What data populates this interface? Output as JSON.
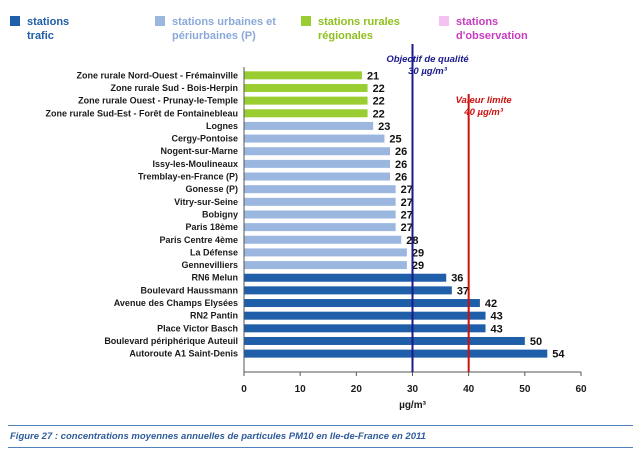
{
  "legend": [
    {
      "key": "trafic",
      "lines": [
        "stations",
        "trafic"
      ],
      "color": "#1f5ea8",
      "text_color": "#1f5ea8"
    },
    {
      "key": "urbaines",
      "lines": [
        "stations urbaines et",
        "périurbaines (P)"
      ],
      "color": "#9bb7e0",
      "text_color": "#8aa9d8"
    },
    {
      "key": "rurales",
      "lines": [
        "stations rurales",
        "régionales"
      ],
      "color": "#9acd32",
      "text_color": "#8fbf1f"
    },
    {
      "key": "observation",
      "lines": [
        "stations",
        "d'observation"
      ],
      "color": "#f4c2f0",
      "text_color": "#c83cc0"
    }
  ],
  "chart_data": {
    "type": "bar",
    "orientation": "horizontal",
    "categories": [
      "Zone rurale Nord-Ouest - Frémainville",
      "Zone rurale Sud - Bois-Herpin",
      "Zone rurale Ouest - Prunay-le-Temple",
      "Zone rurale Sud-Est - Forêt de Fontainebleau",
      "Lognes",
      "Cergy-Pontoise",
      "Nogent-sur-Marne",
      "Issy-les-Moulineaux",
      "Tremblay-en-France (P)",
      "Gonesse (P)",
      "Vitry-sur-Seine",
      "Bobigny",
      "Paris 18ème",
      "Paris Centre 4ème",
      "La Défense",
      "Gennevilliers",
      "RN6 Melun",
      "Boulevard Haussmann",
      "Avenue des Champs Elysées",
      "RN2 Pantin",
      "Place Victor Basch",
      "Boulevard périphérique Auteuil",
      "Autoroute A1 Saint-Denis"
    ],
    "values": [
      21,
      22,
      22,
      22,
      23,
      25,
      26,
      26,
      26,
      27,
      27,
      27,
      27,
      28,
      29,
      29,
      36,
      37,
      42,
      43,
      43,
      50,
      54
    ],
    "groups": [
      "rurales",
      "rurales",
      "rurales",
      "rurales",
      "urbaines",
      "urbaines",
      "urbaines",
      "urbaines",
      "urbaines",
      "urbaines",
      "urbaines",
      "urbaines",
      "urbaines",
      "urbaines",
      "urbaines",
      "urbaines",
      "trafic",
      "trafic",
      "trafic",
      "trafic",
      "trafic",
      "trafic",
      "trafic"
    ],
    "xlabel": "µg/m³",
    "xlim": [
      0,
      60
    ],
    "xticks": [
      "0",
      "10",
      "20",
      "30",
      "40",
      "50",
      "60"
    ],
    "grid": false,
    "reference_lines": [
      {
        "value": 30,
        "color": "#1a1a8c",
        "lines": [
          "Objectif de qualité",
          "30 µg/m³"
        ],
        "text_color": "#1a1a8c"
      },
      {
        "value": 40,
        "color": "#cc1111",
        "lines": [
          "Valeur limite",
          "40 µg/m³"
        ],
        "text_color": "#cc1111"
      }
    ]
  },
  "caption": "Figure 27 : concentrations moyennes annuelles de particules PM10 en Ile-de-France en 2011"
}
